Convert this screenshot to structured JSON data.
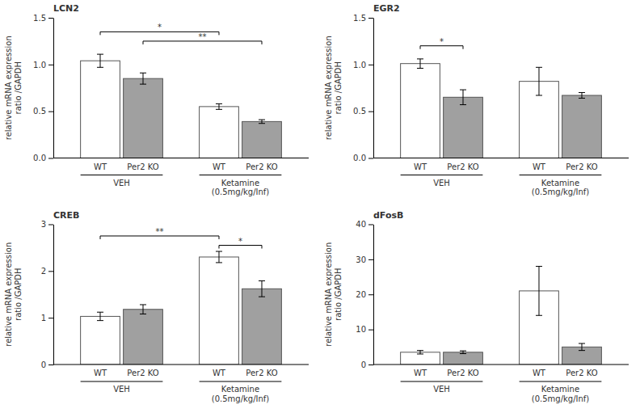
{
  "chart_data": [
    {
      "type": "bar",
      "title": "LCN2",
      "ylabel": "relative mRNA expression\nratio /GAPDH",
      "categories": [
        "VEH",
        "Ketamine\n(0.5mg/kg/Inf)"
      ],
      "series": [
        {
          "name": "WT",
          "color": "white",
          "values": [
            1.04,
            0.55
          ],
          "errors": [
            0.07,
            0.03
          ]
        },
        {
          "name": "Per2 KO",
          "color": "#a0a0a0",
          "values": [
            0.85,
            0.39
          ],
          "errors": [
            0.06,
            0.02
          ]
        }
      ],
      "ylim": [
        0,
        1.5
      ],
      "yticks": [
        {
          "value": 0,
          "label": "0.0"
        },
        0.5,
        {
          "value": 1,
          "label": "1.0"
        },
        1.5
      ],
      "grid": false,
      "annotations": [
        {
          "text": "*",
          "y": 1.35,
          "from": {
            "series": 0,
            "category": 0
          },
          "to": {
            "series": 0,
            "category": 1
          }
        },
        {
          "text": "**",
          "y": 1.25,
          "from": {
            "series": 1,
            "category": 0
          },
          "to": {
            "series": 1,
            "category": 1
          }
        }
      ]
    },
    {
      "type": "bar",
      "title": "EGR2",
      "ylabel": "relative mRNA expression\nratio /GAPDH",
      "categories": [
        "VEH",
        "Ketamine\n(0.5mg/kg/Inf)"
      ],
      "series": [
        {
          "name": "WT",
          "color": "white",
          "values": [
            1.01,
            0.82
          ],
          "errors": [
            0.05,
            0.15
          ]
        },
        {
          "name": "Per2 KO",
          "color": "#a0a0a0",
          "values": [
            0.65,
            0.67
          ],
          "errors": [
            0.08,
            0.03
          ]
        }
      ],
      "ylim": [
        0,
        1.5
      ],
      "yticks": [
        {
          "value": 0,
          "label": "0.0"
        },
        0.5,
        {
          "value": 1,
          "label": "1.0"
        },
        1.5
      ],
      "grid": false,
      "annotations": [
        {
          "text": "*",
          "y": 1.2,
          "from": {
            "series": 0,
            "category": 0
          },
          "to": {
            "series": 1,
            "category": 0
          }
        }
      ]
    },
    {
      "type": "bar",
      "title": "CREB",
      "ylabel": "relative mRNA expression\nratio /GAPDH",
      "categories": [
        "VEH",
        "Ketamine\n(0.5mg/kg/Inf)"
      ],
      "series": [
        {
          "name": "WT",
          "color": "white",
          "values": [
            1.03,
            2.3
          ],
          "errors": [
            0.09,
            0.12
          ]
        },
        {
          "name": "Per2 KO",
          "color": "#a0a0a0",
          "values": [
            1.18,
            1.62
          ],
          "errors": [
            0.1,
            0.17
          ]
        }
      ],
      "ylim": [
        0,
        3
      ],
      "yticks": [
        0,
        1,
        2,
        3
      ],
      "grid": false,
      "annotations": [
        {
          "text": "**",
          "y": 2.75,
          "from": {
            "series": 0,
            "category": 0
          },
          "to": {
            "series": 0,
            "category": 1
          }
        },
        {
          "text": "*",
          "y": 2.55,
          "from": {
            "series": 0,
            "category": 1
          },
          "to": {
            "series": 1,
            "category": 1
          }
        }
      ]
    },
    {
      "type": "bar",
      "title": "dFosB",
      "ylabel": "relative mRNA expression\nratio /GAPDH",
      "categories": [
        "VEH",
        "Ketamine\n(0.5mg/kg/Inf)"
      ],
      "series": [
        {
          "name": "WT",
          "color": "white",
          "values": [
            3.5,
            21
          ],
          "errors": [
            0.5,
            7
          ]
        },
        {
          "name": "Per2 KO",
          "color": "#a0a0a0",
          "values": [
            3.5,
            5
          ],
          "errors": [
            0.4,
            1
          ]
        }
      ],
      "ylim": [
        0,
        40
      ],
      "yticks": [
        0,
        10,
        20,
        30,
        40
      ],
      "grid": false
    }
  ]
}
